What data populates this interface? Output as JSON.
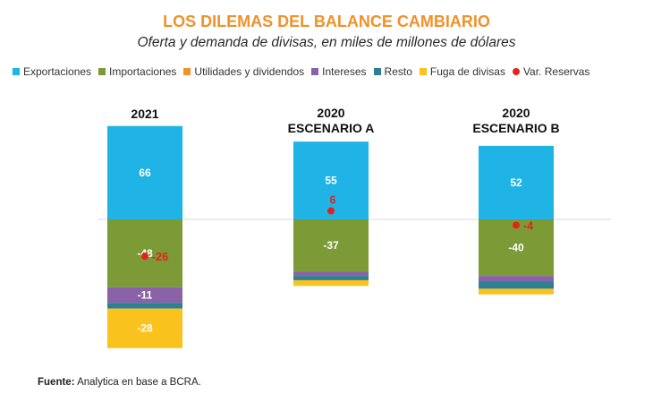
{
  "title": "LOS DILEMAS DEL BALANCE CAMBIARIO",
  "subtitle": "Oferta y demanda de divisas, en miles de millones de dólares",
  "source_label": "Fuente:",
  "source_text": "Analytica en base a BCRA.",
  "colors": {
    "exportaciones": "#1fb3e6",
    "importaciones": "#7c9a36",
    "utilidades": "#f0912a",
    "intereses": "#8a62a8",
    "resto": "#2c7f95",
    "fuga": "#fac21c",
    "reservas": "#e3231b"
  },
  "chart_data": {
    "type": "bar",
    "stacked": true,
    "categories": [
      {
        "line1": "2021",
        "line2": ""
      },
      {
        "line1": "2020",
        "line2": "ESCENARIO A"
      },
      {
        "line1": "2020",
        "line2": "ESCENARIO B"
      }
    ],
    "series": [
      {
        "name": "Exportaciones",
        "key": "exportaciones",
        "values": [
          66,
          55,
          52
        ]
      },
      {
        "name": "Importaciones",
        "key": "importaciones",
        "values": [
          -48,
          -37,
          -40
        ]
      },
      {
        "name": "Utilidades y dividendos",
        "key": "utilidades",
        "values": [
          0,
          0,
          0
        ]
      },
      {
        "name": "Intereses",
        "key": "intereses",
        "values": [
          -11,
          -3,
          -4
        ]
      },
      {
        "name": "Resto",
        "key": "resto",
        "values": [
          -4,
          -3,
          -5
        ]
      },
      {
        "name": "Fuga de divisas",
        "key": "fuga",
        "values": [
          -28,
          -4,
          -4
        ]
      }
    ],
    "markers": {
      "name": "Var. Reservas",
      "key": "reservas",
      "values": [
        -26,
        6,
        -4
      ]
    },
    "labels": [
      {
        "exportaciones": "66",
        "importaciones": "-48",
        "intereses": "-11",
        "fuga": "-28",
        "reservas": "-26"
      },
      {
        "exportaciones": "55",
        "importaciones": "-37",
        "reservas": "6"
      },
      {
        "exportaciones": "52",
        "importaciones": "-40",
        "reservas": "-4"
      }
    ],
    "ylim": [
      -95,
      68
    ],
    "grid": false,
    "legend_position": "top"
  }
}
